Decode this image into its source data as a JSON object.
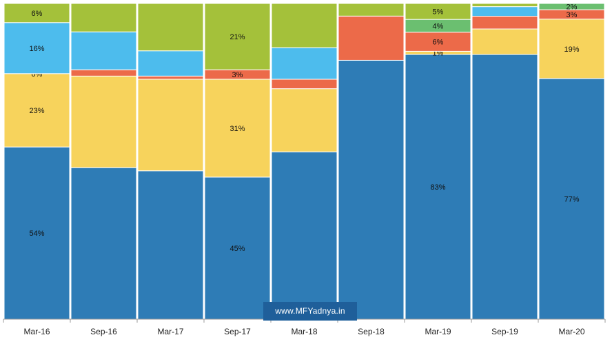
{
  "chart_data": {
    "type": "bar",
    "stacked": true,
    "percent_stacked": true,
    "categories": [
      "Mar-16",
      "Sep-16",
      "Mar-17",
      "Sep-17",
      "Mar-18",
      "Sep-18",
      "Mar-19",
      "Sep-19",
      "Mar-20"
    ],
    "series": [
      {
        "color": "#2e7cb6",
        "values": [
          54,
          48,
          47,
          45,
          53,
          82,
          83,
          83,
          77
        ],
        "labels": [
          "54%",
          "",
          "",
          "45%",
          "",
          "",
          "83%",
          "",
          "77%"
        ]
      },
      {
        "color": "#f7d35c",
        "values": [
          23,
          29,
          29,
          31,
          20,
          0,
          1,
          8,
          19
        ],
        "labels": [
          "23%",
          "",
          "",
          "31%",
          "",
          "",
          "1%",
          "",
          "19%"
        ]
      },
      {
        "color": "#ec6a49",
        "values": [
          0,
          2,
          1,
          3,
          3,
          14,
          6,
          4,
          3
        ],
        "labels": [
          "0%",
          "",
          "",
          "3%",
          "",
          "",
          "6%",
          "",
          "3%"
        ]
      },
      {
        "color": "#4dbced",
        "values": [
          16,
          12,
          8,
          0,
          10,
          0,
          0,
          3,
          0
        ],
        "labels": [
          "16%",
          "",
          "",
          "",
          "",
          "",
          "",
          "",
          ""
        ]
      },
      {
        "color": "#6bbf70",
        "values": [
          0,
          0,
          0,
          0,
          0,
          0,
          4,
          0,
          2
        ],
        "labels": [
          "",
          "",
          "",
          "",
          "",
          "",
          "4%",
          "",
          "2%"
        ]
      },
      {
        "color": "#a4c13a",
        "values": [
          6,
          9,
          15,
          21,
          14,
          4,
          5,
          1,
          0
        ],
        "labels": [
          "6%",
          "",
          "",
          "21%",
          "",
          "",
          "5%",
          "",
          ""
        ]
      }
    ],
    "ylim": [
      0,
      100
    ],
    "grid": false,
    "legend": "none",
    "watermark": "www.MFYadnya.in"
  }
}
